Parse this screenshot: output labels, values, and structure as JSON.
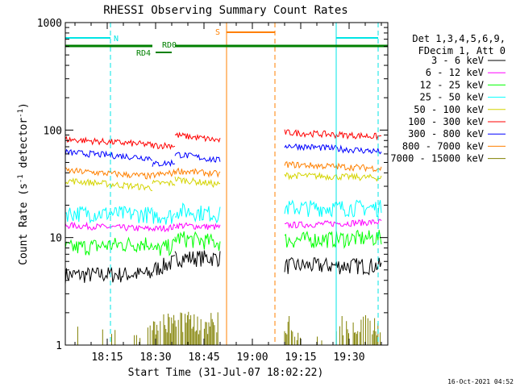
{
  "chart_data": {
    "type": "line",
    "title": "RHESSI Observing Summary Count Rates",
    "xlabel": "Start Time (31-Jul-07 18:02:22)",
    "ylabel": "Count Rate (s^-1 detector^-1)",
    "ylabel_parts": [
      "Count Rate (s",
      "-1",
      " detector",
      "-1",
      ")"
    ],
    "yscale": "log",
    "ylim": [
      1,
      1000
    ],
    "xlim": [
      "18:02",
      "19:42"
    ],
    "x_ticks": [
      "18:15",
      "18:30",
      "18:45",
      "19:00",
      "19:15",
      "19:30"
    ],
    "y_ticks": [
      "1",
      "10",
      "100",
      "1000"
    ],
    "grid": false,
    "legend_position": "right",
    "legend_header": [
      "Det 1,3,4,5,6,9,",
      "FDecim 1, Att 0"
    ],
    "timestamp": "16-Oct-2021 04:52",
    "annotations": [
      {
        "label": "N",
        "color": "#00e5e5"
      },
      {
        "label": "RD0",
        "color": "#008000"
      },
      {
        "label": "RD4",
        "color": "#008000"
      },
      {
        "label": "S",
        "color": "#ff8000"
      }
    ],
    "time_markers": [
      {
        "time": "18:02",
        "color": "#00e5e5",
        "style": "solid"
      },
      {
        "time": "18:16",
        "color": "#00e5e5",
        "style": "dashed"
      },
      {
        "time": "18:52",
        "color": "#ff8000",
        "style": "solid"
      },
      {
        "time": "19:07",
        "color": "#ff8000",
        "style": "dashed"
      },
      {
        "time": "19:26",
        "color": "#00e5e5",
        "style": "solid"
      },
      {
        "time": "19:39",
        "color": "#00e5e5",
        "style": "dashed"
      }
    ],
    "segments": [
      {
        "start": "18:02",
        "end": "18:29"
      },
      {
        "start": "18:29",
        "end": "18:36"
      },
      {
        "start": "18:36",
        "end": "18:50"
      },
      {
        "start": "19:10",
        "end": "19:40"
      }
    ],
    "series": [
      {
        "name": "3 - 6 keV",
        "color": "#000000",
        "levels": [
          [
            4.5,
            4.6
          ],
          [
            5.0,
            6.0
          ],
          [
            6.5,
            6.5
          ],
          [
            5.5,
            5.5
          ]
        ]
      },
      {
        "name": "6 - 12 keV",
        "color": "#ff00ff",
        "levels": [
          [
            13,
            12
          ],
          [
            12,
            12.5
          ],
          [
            13,
            12.5
          ],
          [
            13,
            14
          ]
        ]
      },
      {
        "name": "12 - 25 keV",
        "color": "#00ff00",
        "levels": [
          [
            8,
            9
          ],
          [
            7.5,
            8.5
          ],
          [
            10,
            9
          ],
          [
            9.5,
            10
          ]
        ]
      },
      {
        "name": "25 - 50 keV",
        "color": "#00ffff",
        "levels": [
          [
            17,
            16.5
          ],
          [
            16,
            16
          ],
          [
            18,
            16.5
          ],
          [
            19,
            19
          ]
        ]
      },
      {
        "name": "50 - 100 keV",
        "color": "#d4d400",
        "levels": [
          [
            34,
            29
          ],
          [
            32,
            32
          ],
          [
            35,
            31
          ],
          [
            38,
            36
          ]
        ]
      },
      {
        "name": "100 - 300 keV",
        "color": "#ff0000",
        "levels": [
          [
            82,
            73
          ],
          [
            72,
            72
          ],
          [
            90,
            80
          ],
          [
            95,
            87
          ]
        ]
      },
      {
        "name": "300 - 800 keV",
        "color": "#0000ff",
        "levels": [
          [
            62,
            55
          ],
          [
            48,
            50
          ],
          [
            60,
            52
          ],
          [
            72,
            63
          ]
        ]
      },
      {
        "name": "800 - 7000 keV",
        "color": "#ff8000",
        "levels": [
          [
            42,
            37
          ],
          [
            38,
            40
          ],
          [
            42,
            39
          ],
          [
            48,
            44
          ]
        ]
      },
      {
        "name": "7000 - 15000 keV",
        "color": "#808000",
        "levels": [
          [
            1.2,
            1.2
          ],
          [
            1.9,
            1.9
          ],
          [
            1.6,
            1.6
          ],
          [
            1.8,
            1.8
          ]
        ]
      }
    ]
  }
}
